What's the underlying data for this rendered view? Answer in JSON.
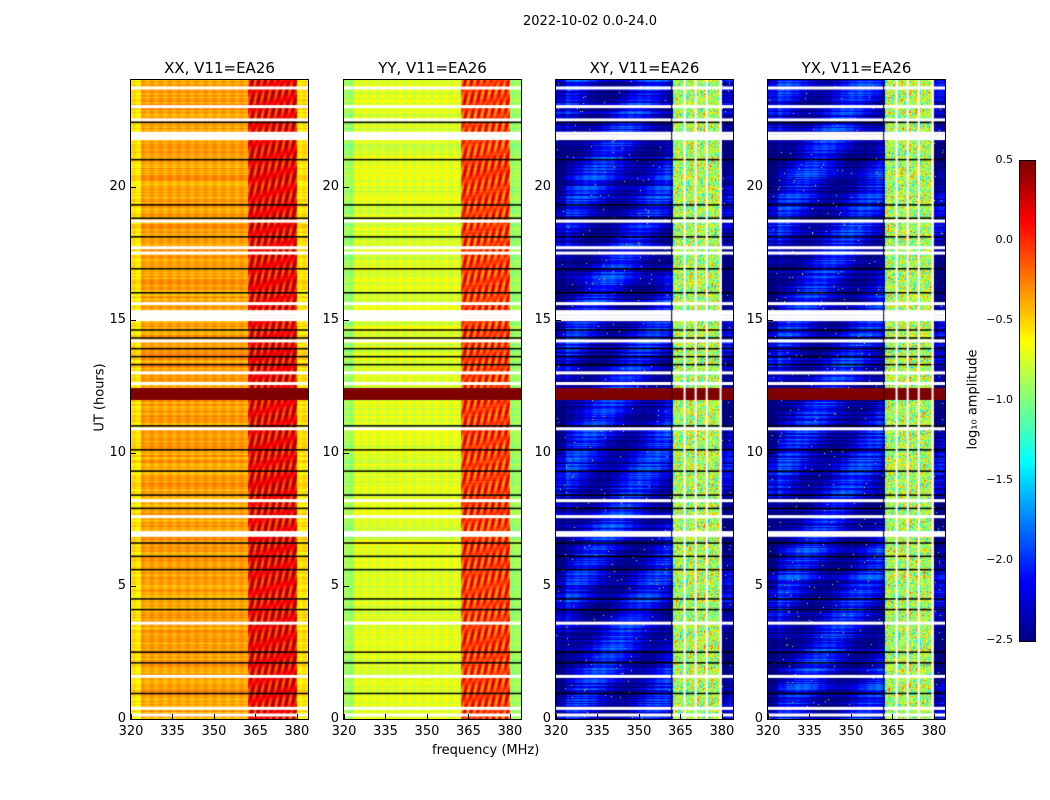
{
  "chart_data": {
    "type": "heatmap",
    "suptitle": "2022-10-02 0.0-24.0",
    "xlabel": "frequency (MHz)",
    "ylabel": "UT (hours)",
    "xlim": [
      320,
      384
    ],
    "ylim": [
      0,
      24
    ],
    "xticks": [
      "320",
      "335",
      "350",
      "365",
      "380"
    ],
    "xtick_values": [
      320,
      335,
      350,
      365,
      380
    ],
    "yticks": [
      "0",
      "5",
      "10",
      "15",
      "20"
    ],
    "ytick_values": [
      0,
      5,
      10,
      15,
      20
    ],
    "colorbar": {
      "label": "log₁₀ amplitude",
      "range": [
        -2.5,
        0.5
      ],
      "ticks": [
        "0.5",
        "0.0",
        "−0.5",
        "−1.0",
        "−1.5",
        "−2.0",
        "−2.5"
      ],
      "tick_values": [
        0.5,
        0.0,
        -0.5,
        -1.0,
        -1.5,
        -2.0,
        -2.5
      ],
      "colormap": "jet"
    },
    "panels": [
      {
        "title": "XX, V11=EA26",
        "low_band_level": -0.35,
        "high_band_level": 0.15,
        "band_edge_mhz": 362
      },
      {
        "title": "YY, V11=EA26",
        "low_band_level": -0.72,
        "high_band_level": -0.05,
        "band_edge_mhz": 362
      },
      {
        "title": "XY, V11=EA26",
        "low_band_level": -2.25,
        "high_band_level": -0.85,
        "band_edge_mhz": 362
      },
      {
        "title": "YX, V11=EA26",
        "low_band_level": -2.25,
        "high_band_level": -0.85,
        "band_edge_mhz": 362
      }
    ],
    "saturated_hours": [
      12.0,
      12.45
    ],
    "flagged_white_hours": [
      0.15,
      0.4,
      1.6,
      3.6,
      6.9,
      7.0,
      7.6,
      8.2,
      10.9,
      12.6,
      13.0,
      14.2,
      15.0,
      15.1,
      15.2,
      15.3,
      15.6,
      17.5,
      17.7,
      18.7,
      21.8,
      21.9,
      22.0,
      22.5,
      23.0,
      23.7
    ],
    "flagged_black_hours": [
      0.95,
      2.1,
      2.5,
      4.1,
      4.5,
      5.6,
      6.1,
      6.6,
      7.9,
      8.4,
      9.3,
      10.1,
      11.0,
      13.3,
      13.6,
      13.9,
      14.3,
      14.6,
      16.0,
      16.9,
      18.1,
      18.8,
      19.3,
      21.0,
      22.4
    ],
    "channel_gaps_mhz": [
      366.5,
      370.5,
      374.5,
      379.5
    ]
  }
}
